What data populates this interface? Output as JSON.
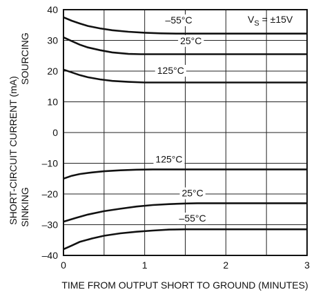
{
  "chart_data": {
    "type": "line",
    "title": "",
    "annotation": {
      "prefix": "V",
      "subscript": "S",
      "suffix": " = ±15V"
    },
    "xlabel": "TIME FROM OUTPUT SHORT TO GROUND (MINUTES)",
    "ylabel": "SHORT-CIRCUIT CURRENT (mA)",
    "ylabel_upper": "SOURCING",
    "ylabel_lower": "SINKING",
    "xlim": [
      0,
      3
    ],
    "ylim": [
      -40,
      40
    ],
    "x_ticks": [
      {
        "value": 0,
        "label": "0"
      },
      {
        "value": 1,
        "label": "1"
      },
      {
        "value": 2,
        "label": "2"
      },
      {
        "value": 3,
        "label": "3"
      }
    ],
    "y_ticks": [
      {
        "value": 40,
        "label": "40"
      },
      {
        "value": 30,
        "label": "30"
      },
      {
        "value": 20,
        "label": "20"
      },
      {
        "value": 10,
        "label": "10"
      },
      {
        "value": 0,
        "label": "0"
      },
      {
        "value": -10,
        "label": "–10"
      },
      {
        "value": -20,
        "label": "–20"
      },
      {
        "value": -30,
        "label": "–30"
      },
      {
        "value": -40,
        "label": "–40"
      }
    ],
    "grid": true,
    "series": [
      {
        "name": "–55°C",
        "region": "sourcing",
        "label_at": [
          1.42,
          35.5
        ],
        "x": [
          0,
          0.1,
          0.2,
          0.3,
          0.45,
          0.6,
          0.8,
          1.0,
          1.2,
          1.4,
          1.7,
          2.0,
          2.5,
          3.0
        ],
        "y": [
          37.5,
          36.4,
          35.5,
          34.7,
          33.9,
          33.3,
          32.8,
          32.5,
          32.3,
          32.2,
          32.2,
          32.2,
          32.2,
          32.2
        ]
      },
      {
        "name": "25°C",
        "region": "sourcing",
        "label_at": [
          1.57,
          28.8
        ],
        "x": [
          0,
          0.1,
          0.2,
          0.3,
          0.45,
          0.6,
          0.8,
          0.95,
          1.2,
          1.5,
          2.0,
          2.5,
          3.0
        ],
        "y": [
          31.0,
          29.8,
          28.6,
          27.7,
          26.8,
          26.1,
          25.6,
          25.5,
          25.5,
          25.5,
          25.5,
          25.5,
          25.5
        ]
      },
      {
        "name": "125°C",
        "region": "sourcing",
        "label_at": [
          1.32,
          19.1
        ],
        "x": [
          0,
          0.1,
          0.2,
          0.3,
          0.45,
          0.6,
          0.8,
          1.0,
          1.2,
          1.5,
          2.0,
          2.5,
          3.0
        ],
        "y": [
          20.5,
          19.6,
          18.7,
          18.0,
          17.3,
          16.8,
          16.5,
          16.3,
          16.3,
          16.3,
          16.3,
          16.3,
          16.3
        ]
      },
      {
        "name": "125°C",
        "region": "sinking",
        "label_at": [
          1.3,
          -9.8
        ],
        "x": [
          0,
          0.1,
          0.2,
          0.35,
          0.5,
          0.7,
          0.9,
          1.1,
          1.3,
          1.5,
          2.0,
          2.5,
          3.0
        ],
        "y": [
          -15.0,
          -14.1,
          -13.5,
          -13.0,
          -12.6,
          -12.3,
          -12.1,
          -12.0,
          -12.0,
          -12.0,
          -12.0,
          -12.0,
          -12.0
        ]
      },
      {
        "name": "25°C",
        "region": "sinking",
        "label_at": [
          1.59,
          -20.8
        ],
        "x": [
          0,
          0.15,
          0.3,
          0.5,
          0.7,
          0.9,
          1.1,
          1.3,
          1.5,
          1.65,
          1.8,
          2.0,
          2.5,
          3.0
        ],
        "y": [
          -29.0,
          -27.8,
          -26.7,
          -25.6,
          -24.8,
          -24.1,
          -23.6,
          -23.3,
          -23.1,
          -23.0,
          -23.0,
          -23.0,
          -23.0,
          -23.0
        ]
      },
      {
        "name": "–55°C",
        "region": "sinking",
        "label_at": [
          1.59,
          -29.0
        ],
        "x": [
          0,
          0.1,
          0.2,
          0.35,
          0.5,
          0.7,
          0.9,
          1.1,
          1.3,
          1.5,
          1.65,
          2.0,
          2.5,
          3.0
        ],
        "y": [
          -38.0,
          -36.8,
          -35.6,
          -34.5,
          -33.6,
          -32.8,
          -32.3,
          -31.9,
          -31.6,
          -31.5,
          -31.5,
          -31.5,
          -31.5,
          -31.5
        ]
      }
    ]
  }
}
